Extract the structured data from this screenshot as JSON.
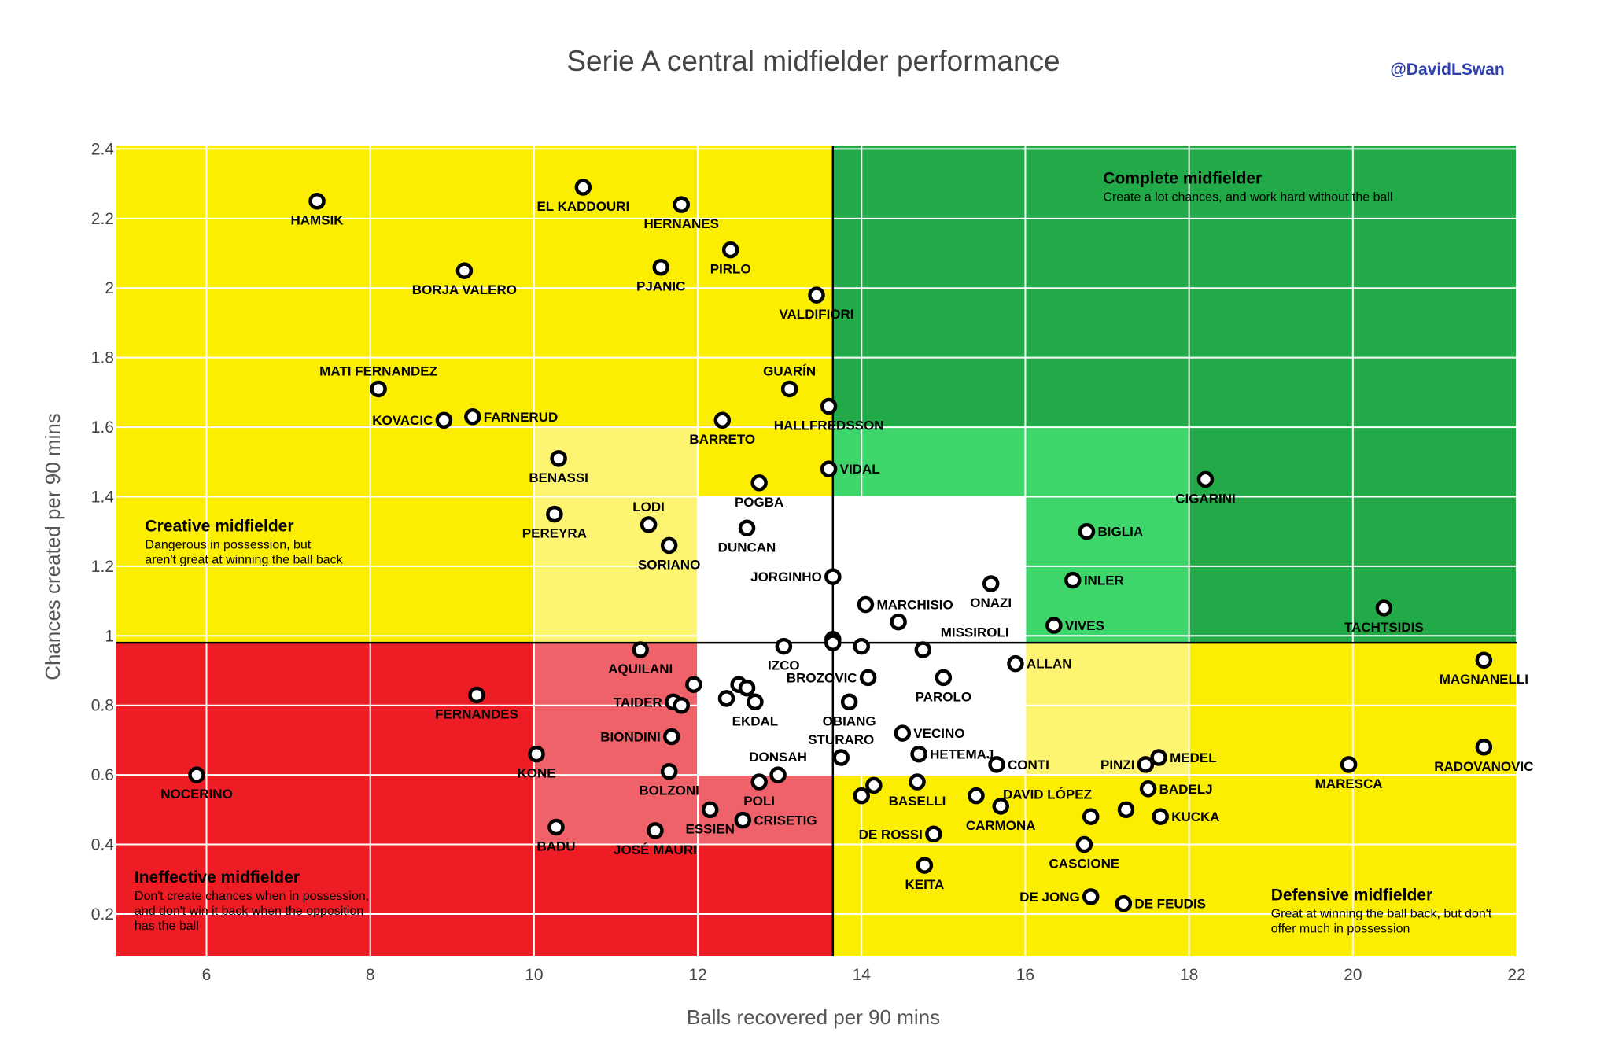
{
  "chart_data": {
    "type": "scatter",
    "title": "Serie A central midfielder performance",
    "credit": "@DavidLSwan",
    "xlabel": "Balls recovered per 90 mins",
    "ylabel": "Chances created per 90 mins",
    "xlim": [
      4.9,
      22
    ],
    "ylim": [
      0.08,
      2.41
    ],
    "x_ticks": [
      6,
      8,
      10,
      12,
      14,
      16,
      18,
      20,
      22
    ],
    "y_ticks": [
      0.2,
      0.4,
      0.6,
      0.8,
      1,
      1.2,
      1.4,
      1.6,
      1.8,
      2,
      2.2,
      2.4
    ],
    "dividers": {
      "x": 13.65,
      "y": 0.98
    },
    "zones": [
      {
        "name": "creative",
        "x": [
          4.9,
          13.65
        ],
        "y": [
          0.98,
          2.41
        ],
        "color": "#fcee00"
      },
      {
        "name": "creative-inner",
        "x": [
          10,
          12
        ],
        "y": [
          0.98,
          1.6
        ],
        "color": "#fdf471"
      },
      {
        "name": "creative-neutral",
        "x": [
          12,
          13.65
        ],
        "y": [
          0.98,
          1.4
        ],
        "color": "#ffffff"
      },
      {
        "name": "complete",
        "x": [
          13.65,
          22
        ],
        "y": [
          0.98,
          2.41
        ],
        "color": "#22aa48"
      },
      {
        "name": "complete-inner",
        "x": [
          13.65,
          18
        ],
        "y": [
          0.98,
          1.6
        ],
        "color": "#3ed66a"
      },
      {
        "name": "complete-neutral",
        "x": [
          13.65,
          16
        ],
        "y": [
          0.98,
          1.4
        ],
        "color": "#ffffff"
      },
      {
        "name": "ineffective",
        "x": [
          4.9,
          13.65
        ],
        "y": [
          0.08,
          0.98
        ],
        "color": "#ee1c25"
      },
      {
        "name": "ineffective-inner",
        "x": [
          10,
          13.65
        ],
        "y": [
          0.4,
          0.98
        ],
        "color": "#f0626a"
      },
      {
        "name": "ineffective-neutral",
        "x": [
          12,
          13.65
        ],
        "y": [
          0.6,
          0.98
        ],
        "color": "#ffffff"
      },
      {
        "name": "defensive",
        "x": [
          13.65,
          22
        ],
        "y": [
          0.08,
          0.98
        ],
        "color": "#fcee00"
      },
      {
        "name": "defensive-inner",
        "x": [
          13.65,
          18
        ],
        "y": [
          0.6,
          0.98
        ],
        "color": "#fdf471"
      },
      {
        "name": "defensive-neutral",
        "x": [
          13.65,
          16
        ],
        "y": [
          0.6,
          0.98
        ],
        "color": "#ffffff"
      }
    ],
    "annotations": [
      {
        "title": "Complete midfielder",
        "lines": [
          "Create a lot chances, and work hard without the ball"
        ],
        "x": 16.95,
        "y": 2.3
      },
      {
        "title": "Creative midfielder",
        "lines": [
          "Dangerous in possession, but",
          "aren't great at winning the ball back"
        ],
        "x": 5.25,
        "y": 1.3
      },
      {
        "title": "Ineffective midfielder",
        "lines": [
          "Don't create chances when in possession,",
          "and don't win it back when the opposition",
          "has the ball"
        ],
        "x": 5.12,
        "y": 0.29
      },
      {
        "title": "Defensive midfielder",
        "lines": [
          "Great at winning the ball back, but don't",
          "offer much in possession"
        ],
        "x": 19.0,
        "y": 0.24
      }
    ],
    "points": [
      {
        "name": "HAMSIK",
        "x": 7.35,
        "y": 2.25,
        "pos": "below"
      },
      {
        "name": "EL KADDOURI",
        "x": 10.6,
        "y": 2.29,
        "pos": "below"
      },
      {
        "name": "HERNANES",
        "x": 11.8,
        "y": 2.24,
        "pos": "below"
      },
      {
        "name": "BORJA VALERO",
        "x": 9.15,
        "y": 2.05,
        "pos": "below"
      },
      {
        "name": "PJANIC",
        "x": 11.55,
        "y": 2.06,
        "pos": "below"
      },
      {
        "name": "PIRLO",
        "x": 12.4,
        "y": 2.11,
        "pos": "below"
      },
      {
        "name": "VALDIFIORI",
        "x": 13.45,
        "y": 1.98,
        "pos": "below"
      },
      {
        "name": "MATI FERNANDEZ",
        "x": 8.1,
        "y": 1.71,
        "pos": "above"
      },
      {
        "name": "GUARÍN",
        "x": 13.12,
        "y": 1.71,
        "pos": "above"
      },
      {
        "name": "KOVACIC",
        "x": 8.9,
        "y": 1.62,
        "pos": "left"
      },
      {
        "name": "FARNERUD",
        "x": 9.25,
        "y": 1.63,
        "pos": "right"
      },
      {
        "name": "BARRETO",
        "x": 12.3,
        "y": 1.62,
        "pos": "below"
      },
      {
        "name": "HALLFREDSSON",
        "x": 13.6,
        "y": 1.66,
        "pos": "below"
      },
      {
        "name": "BENASSI",
        "x": 10.3,
        "y": 1.51,
        "pos": "below"
      },
      {
        "name": "VIDAL",
        "x": 13.6,
        "y": 1.48,
        "pos": "right"
      },
      {
        "name": "POGBA",
        "x": 12.75,
        "y": 1.44,
        "pos": "below"
      },
      {
        "name": "LODI",
        "x": 11.4,
        "y": 1.32,
        "pos": "above"
      },
      {
        "name": "PEREYRA",
        "x": 10.25,
        "y": 1.35,
        "pos": "below"
      },
      {
        "name": "DUNCAN",
        "x": 12.6,
        "y": 1.31,
        "pos": "below"
      },
      {
        "name": "SORIANO",
        "x": 11.65,
        "y": 1.26,
        "pos": "below"
      },
      {
        "name": "CIGARINI",
        "x": 18.2,
        "y": 1.45,
        "pos": "below"
      },
      {
        "name": "BIGLIA",
        "x": 16.75,
        "y": 1.3,
        "pos": "right"
      },
      {
        "name": "JORGINHO",
        "x": 13.65,
        "y": 1.17,
        "pos": "left"
      },
      {
        "name": "INLER",
        "x": 16.58,
        "y": 1.16,
        "pos": "right"
      },
      {
        "name": "ONAZI",
        "x": 15.58,
        "y": 1.15,
        "pos": "below"
      },
      {
        "name": "MARCHISIO",
        "x": 14.05,
        "y": 1.09,
        "pos": "right"
      },
      {
        "name": "TACHTSIDIS",
        "x": 20.38,
        "y": 1.08,
        "pos": "below"
      },
      {
        "name": "VIVES",
        "x": 16.35,
        "y": 1.03,
        "pos": "right"
      },
      {
        "name": "MISSIROLI",
        "x": 14.45,
        "y": 1.04,
        "pos": "none"
      },
      {
        "name": "AQUILANI",
        "x": 11.3,
        "y": 0.96,
        "pos": "below"
      },
      {
        "name": "IZCO",
        "x": 13.05,
        "y": 0.97,
        "pos": "below"
      },
      {
        "name": "ALLAN",
        "x": 15.88,
        "y": 0.92,
        "pos": "right"
      },
      {
        "name": "MAGNANELLI",
        "x": 21.6,
        "y": 0.93,
        "pos": "below"
      },
      {
        "name": "BROZOVIC",
        "x": 14.08,
        "y": 0.88,
        "pos": "left"
      },
      {
        "name": "PAROLO",
        "x": 15.0,
        "y": 0.88,
        "pos": "below"
      },
      {
        "name": "FERNANDES",
        "x": 9.3,
        "y": 0.83,
        "pos": "below"
      },
      {
        "name": "TAIDER",
        "x": 11.7,
        "y": 0.81,
        "pos": "left"
      },
      {
        "name": "EKDAL",
        "x": 12.7,
        "y": 0.81,
        "pos": "below"
      },
      {
        "name": "OBIANG",
        "x": 13.85,
        "y": 0.81,
        "pos": "below"
      },
      {
        "name": "BIONDINI",
        "x": 11.68,
        "y": 0.71,
        "pos": "left"
      },
      {
        "name": "VECINO",
        "x": 14.5,
        "y": 0.72,
        "pos": "right"
      },
      {
        "name": "STURARO",
        "x": 13.75,
        "y": 0.65,
        "pos": "above"
      },
      {
        "name": "HETEMAJ",
        "x": 14.7,
        "y": 0.66,
        "pos": "right"
      },
      {
        "name": "KONE",
        "x": 10.03,
        "y": 0.66,
        "pos": "below"
      },
      {
        "name": "DONSAH",
        "x": 12.98,
        "y": 0.6,
        "pos": "above"
      },
      {
        "name": "NOCERINO",
        "x": 5.88,
        "y": 0.6,
        "pos": "below"
      },
      {
        "name": "BOLZONI",
        "x": 11.65,
        "y": 0.61,
        "pos": "below"
      },
      {
        "name": "CONTI",
        "x": 15.65,
        "y": 0.63,
        "pos": "right"
      },
      {
        "name": "PINZI",
        "x": 17.47,
        "y": 0.63,
        "pos": "left"
      },
      {
        "name": "MEDEL",
        "x": 17.63,
        "y": 0.65,
        "pos": "right"
      },
      {
        "name": "MARESCA",
        "x": 19.95,
        "y": 0.63,
        "pos": "below"
      },
      {
        "name": "RADOVANOVIC",
        "x": 21.6,
        "y": 0.68,
        "pos": "below"
      },
      {
        "name": "POLI",
        "x": 12.75,
        "y": 0.58,
        "pos": "below"
      },
      {
        "name": "BASELLI",
        "x": 14.68,
        "y": 0.58,
        "pos": "below"
      },
      {
        "name": "CARMONA",
        "x": 15.7,
        "y": 0.51,
        "pos": "below"
      },
      {
        "name": "DAVID LÓPEZ",
        "x": 17.23,
        "y": 0.5,
        "pos": "above-left"
      },
      {
        "name": "BADELJ",
        "x": 17.5,
        "y": 0.56,
        "pos": "right"
      },
      {
        "name": "KUCKA",
        "x": 17.65,
        "y": 0.48,
        "pos": "right"
      },
      {
        "name": "ESSIEN",
        "x": 12.15,
        "y": 0.5,
        "pos": "below"
      },
      {
        "name": "CRISETIG",
        "x": 12.55,
        "y": 0.47,
        "pos": "right"
      },
      {
        "name": "BADU",
        "x": 10.27,
        "y": 0.45,
        "pos": "below"
      },
      {
        "name": "JOSÉ MAURI",
        "x": 11.48,
        "y": 0.44,
        "pos": "below"
      },
      {
        "name": "DE ROSSI",
        "x": 14.88,
        "y": 0.43,
        "pos": "left"
      },
      {
        "name": "CASCIONE",
        "x": 16.72,
        "y": 0.4,
        "pos": "below"
      },
      {
        "name": "KEITA",
        "x": 14.77,
        "y": 0.34,
        "pos": "below"
      },
      {
        "name": "DE JONG",
        "x": 16.8,
        "y": 0.25,
        "pos": "left"
      },
      {
        "name": "DE FEUDIS",
        "x": 17.2,
        "y": 0.23,
        "pos": "right"
      },
      {
        "name": "",
        "x": 13.65,
        "y": 0.99,
        "pos": "none"
      },
      {
        "name": "",
        "x": 13.65,
        "y": 0.98,
        "pos": "none"
      },
      {
        "name": "",
        "x": 14.0,
        "y": 0.97,
        "pos": "none"
      },
      {
        "name": "",
        "x": 14.75,
        "y": 0.96,
        "pos": "none"
      },
      {
        "name": "",
        "x": 11.95,
        "y": 0.86,
        "pos": "none"
      },
      {
        "name": "",
        "x": 12.5,
        "y": 0.86,
        "pos": "none"
      },
      {
        "name": "",
        "x": 12.6,
        "y": 0.85,
        "pos": "none"
      },
      {
        "name": "",
        "x": 12.35,
        "y": 0.82,
        "pos": "none"
      },
      {
        "name": "",
        "x": 11.8,
        "y": 0.8,
        "pos": "none"
      },
      {
        "name": "",
        "x": 14.0,
        "y": 0.54,
        "pos": "none"
      },
      {
        "name": "",
        "x": 14.15,
        "y": 0.57,
        "pos": "none"
      },
      {
        "name": "",
        "x": 15.4,
        "y": 0.54,
        "pos": "none"
      },
      {
        "name": "",
        "x": 16.8,
        "y": 0.48,
        "pos": "none"
      }
    ]
  }
}
